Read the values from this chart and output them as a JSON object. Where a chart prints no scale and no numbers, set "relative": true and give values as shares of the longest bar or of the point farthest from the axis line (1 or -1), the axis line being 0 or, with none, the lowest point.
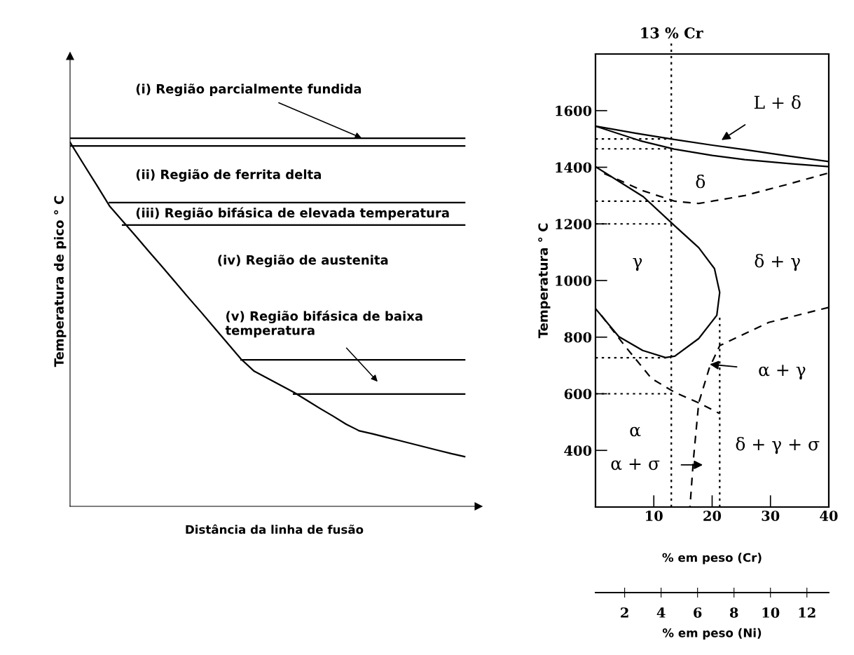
{
  "chart_data": [
    {
      "type": "line",
      "relative": true,
      "xlabel": "Distância da linha de fusão",
      "ylabel": "Temperatura de pico ° C",
      "grid": false,
      "legend": false,
      "marker": "none",
      "categories": [
        null,
        null,
        null,
        null,
        null,
        null,
        null,
        null,
        null,
        null,
        null,
        null,
        null,
        null,
        null,
        null,
        null,
        null,
        null,
        null,
        null,
        null,
        null,
        null,
        null,
        null,
        null,
        null,
        null,
        null,
        null
      ],
      "series": [
        {
          "color": "#000000",
          "values": [
            0.989,
            0.931,
            0.874,
            0.816,
            0.775,
            0.734,
            0.692,
            0.651,
            0.609,
            0.567,
            0.526,
            0.484,
            0.442,
            0.4,
            0.367,
            0.348,
            0.329,
            0.31,
            0.288,
            0.266,
            0.245,
            0.223,
            0.205,
            0.197,
            0.188,
            0.179,
            0.17,
            0.161,
            0.152,
            0.143,
            0.135
          ]
        },
        {
          "color": "#000000",
          "values": [
            1.0,
            1.0,
            1.0,
            1.0,
            1.0,
            1.0,
            1.0,
            1.0,
            1.0,
            1.0,
            1.0,
            1.0,
            1.0,
            1.0,
            1.0,
            1.0,
            1.0,
            1.0,
            1.0,
            1.0,
            1.0,
            1.0,
            1.0,
            1.0,
            1.0,
            1.0,
            1.0,
            1.0,
            1.0,
            1.0,
            1.0
          ]
        },
        {
          "color": "#000000",
          "values": [
            0.979,
            0.979,
            0.979,
            0.979,
            0.979,
            0.979,
            0.979,
            0.979,
            0.979,
            0.979,
            0.979,
            0.979,
            0.979,
            0.979,
            0.979,
            0.979,
            0.979,
            0.979,
            0.979,
            0.979,
            0.979,
            0.979,
            0.979,
            0.979,
            0.979,
            0.979,
            0.979,
            0.979,
            0.979,
            0.979,
            0.979
          ]
        },
        {
          "color": "#000000",
          "values": [
            null,
            null,
            null,
            0.825,
            0.825,
            0.825,
            0.825,
            0.825,
            0.825,
            0.825,
            0.825,
            0.825,
            0.825,
            0.825,
            0.825,
            0.825,
            0.825,
            0.825,
            0.825,
            0.825,
            0.825,
            0.825,
            0.825,
            0.825,
            0.825,
            0.825,
            0.825,
            0.825,
            0.825,
            0.825,
            0.825
          ]
        },
        {
          "color": "#000000",
          "values": [
            null,
            null,
            null,
            null,
            0.764,
            0.764,
            0.764,
            0.764,
            0.764,
            0.764,
            0.764,
            0.764,
            0.764,
            0.764,
            0.764,
            0.764,
            0.764,
            0.764,
            0.764,
            0.764,
            0.764,
            0.764,
            0.764,
            0.764,
            0.764,
            0.764,
            0.764,
            0.764,
            0.764,
            0.764,
            0.764
          ]
        },
        {
          "color": "#000000",
          "values": [
            null,
            null,
            null,
            null,
            null,
            null,
            null,
            null,
            null,
            null,
            null,
            null,
            null,
            0.398,
            0.398,
            0.398,
            0.398,
            0.398,
            0.398,
            0.398,
            0.398,
            0.398,
            0.398,
            0.398,
            0.398,
            0.398,
            0.398,
            0.398,
            0.398,
            0.398,
            0.398
          ]
        },
        {
          "color": "#000000",
          "values": [
            null,
            null,
            null,
            null,
            null,
            null,
            null,
            null,
            null,
            null,
            null,
            null,
            null,
            null,
            null,
            null,
            null,
            0.305,
            0.305,
            0.305,
            0.305,
            0.305,
            0.305,
            0.305,
            0.305,
            0.305,
            0.305,
            0.305,
            0.305,
            0.305,
            0.305
          ]
        }
      ],
      "annotations": [
        "(i) Região parcialmente fundida",
        "(ii) Região de ferrita delta",
        "(iii) Região bifásica de elevada temperatura",
        "(iv) Região de austenita",
        "(v) Região bifásica de baixa\ntemperatura"
      ]
    },
    {
      "type": "line",
      "xlabel": "% em peso (Cr)",
      "ylabel": "Temperatura ° C",
      "x2label": "% em peso (Ni)",
      "xlim": [
        0,
        40
      ],
      "xticks": [
        10,
        20,
        30,
        40
      ],
      "ylim": [
        200,
        1800
      ],
      "yticks": [
        400,
        600,
        800,
        1000,
        1200,
        1400,
        1600
      ],
      "x2lim": [
        0.4,
        13.2
      ],
      "x2ticks": [
        2,
        4,
        6,
        8,
        10,
        12
      ],
      "grid": false,
      "legend": false,
      "marker": "none",
      "ref_lines": [
        {
          "axis": "x",
          "value": 13,
          "label": "13 % Cr",
          "line_style": "dotted",
          "color": "#000000"
        }
      ],
      "series": [
        {
          "color": "#000000",
          "line_style": "solid",
          "x": [
            0,
            7,
            13.5,
            20,
            25.6,
            33,
            40
          ],
          "values": [
            1545,
            1520,
            1498,
            1478,
            1462,
            1440,
            1420
          ]
        },
        {
          "color": "#000000",
          "line_style": "solid",
          "x": [
            0,
            7.6,
            13.5,
            20,
            25.6,
            33.7,
            40
          ],
          "values": [
            1545,
            1494,
            1464,
            1442,
            1427,
            1412,
            1402
          ]
        },
        {
          "color": "#000000",
          "line_style": "solid",
          "x": [
            0,
            8.2,
            13.6,
            17.7,
            20.4,
            21.3,
            20.8,
            17.7,
            13.6,
            12.0,
            8.1,
            4.0,
            0
          ],
          "values": [
            1402,
            1296,
            1193,
            1116,
            1042,
            958,
            877,
            795,
            733,
            728,
            753,
            802,
            901
          ]
        },
        {
          "color": "#000000",
          "line_style": "dashed",
          "x": [
            1.5,
            8,
            13.6,
            17.7,
            25.6,
            33,
            40
          ],
          "values": [
            1378,
            1318,
            1280,
            1272,
            1300,
            1340,
            1380
          ]
        },
        {
          "color": "#000000",
          "line_style": "dashed",
          "x": [
            40,
            29.7,
            21.3,
            19.5,
            17.7,
            16.8,
            16.2
          ],
          "values": [
            905,
            852,
            770,
            690,
            568,
            370,
            200
          ]
        },
        {
          "color": "#000000",
          "line_style": "dashed",
          "x": [
            1,
            5,
            9.6,
            13.6,
            17.7,
            21.3
          ],
          "values": [
            877,
            770,
            654,
            605,
            568,
            530
          ]
        },
        {
          "color": "#000000",
          "line_style": "dotted",
          "x": [
            21.3,
            21.3
          ],
          "values": [
            200,
            877
          ]
        },
        {
          "color": "#000000",
          "line_style": "dotted",
          "x": [
            0,
            13
          ],
          "values": [
            1500,
            1500
          ]
        },
        {
          "color": "#000000",
          "line_style": "dotted",
          "x": [
            0,
            13
          ],
          "values": [
            1465,
            1465
          ]
        },
        {
          "color": "#000000",
          "line_style": "dotted",
          "x": [
            0,
            13
          ],
          "values": [
            1280,
            1280
          ]
        },
        {
          "color": "#000000",
          "line_style": "dotted",
          "x": [
            0,
            13
          ],
          "values": [
            1200,
            1200
          ]
        },
        {
          "color": "#000000",
          "line_style": "dotted",
          "x": [
            0,
            13
          ],
          "values": [
            727,
            727
          ]
        },
        {
          "color": "#000000",
          "line_style": "dotted",
          "x": [
            0,
            13
          ],
          "values": [
            600,
            600
          ]
        }
      ],
      "annotations": [
        "L + δ",
        "δ",
        "γ",
        "δ + γ",
        "α + γ",
        "α",
        "δ + γ + σ",
        "α + σ"
      ]
    }
  ]
}
